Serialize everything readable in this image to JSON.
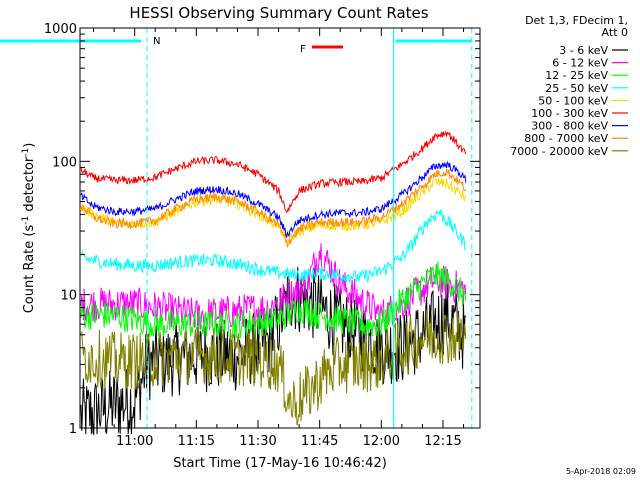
{
  "chart_data": {
    "type": "line",
    "title": "HESSI Observing Summary Count Rates",
    "xlabel": "Start Time (17-May-16 10:46:42)",
    "ylabel_main": "Count Rate (s",
    "ylabel_sup1": "-1",
    "ylabel_mid": " detector",
    "ylabel_sup2": "-1",
    "ylabel_end": ")",
    "y_scale": "log",
    "xlim": [
      "10:46:42",
      "12:24"
    ],
    "ylim": [
      1,
      1000
    ],
    "x_ticks": [
      "11:00",
      "11:15",
      "11:30",
      "11:45",
      "12:00",
      "12:15"
    ],
    "y_ticks": [
      "1",
      "10",
      "100",
      "1000"
    ],
    "legend_header": [
      "Det 1,3, FDecim 1,",
      "Att 0"
    ],
    "legend_position": "right",
    "annotations": {
      "night_label": "N",
      "flare_label": "F"
    },
    "timestamp": "5-Apr-2018 02:09",
    "series": [
      {
        "name": "3 - 6 keV",
        "color": "#000000",
        "time": [
          "10:46",
          "10:50",
          "10:55",
          "11:00",
          "11:03",
          "11:08",
          "11:15",
          "11:25",
          "11:33",
          "11:38",
          "11:42",
          "11:45",
          "11:50",
          "11:55",
          "12:00",
          "12:05",
          "12:10",
          "12:13",
          "12:16",
          "12:20",
          "12:22"
        ],
        "values": [
          1.2,
          1.3,
          1.5,
          1.6,
          3.0,
          3.2,
          3.5,
          3.5,
          4.5,
          10,
          9,
          8,
          6,
          5,
          4,
          4,
          5,
          6,
          7,
          5,
          3.5
        ]
      },
      {
        "name": "6 - 12 keV",
        "color": "#ff00ff",
        "time": [
          "10:46",
          "10:55",
          "11:00",
          "11:05",
          "11:15",
          "11:25",
          "11:33",
          "11:38",
          "11:42",
          "11:45",
          "11:50",
          "11:55",
          "12:00",
          "12:05",
          "12:10",
          "12:13",
          "12:16",
          "12:20",
          "12:22"
        ],
        "values": [
          8.5,
          8.5,
          8.5,
          8,
          7,
          7.5,
          8,
          10,
          12,
          22,
          12,
          9,
          7,
          8.5,
          11,
          13,
          12,
          11,
          9
        ]
      },
      {
        "name": "12 - 25 keV",
        "color": "#00ff00",
        "time": [
          "10:46",
          "10:55",
          "11:00",
          "11:05",
          "11:15",
          "11:25",
          "11:35",
          "11:40",
          "11:45",
          "11:50",
          "11:55",
          "12:00",
          "12:05",
          "12:10",
          "12:13",
          "12:16",
          "12:20",
          "12:22"
        ],
        "values": [
          7,
          7,
          6.5,
          6,
          6,
          6,
          6.5,
          8,
          7,
          6.5,
          6,
          6,
          9,
          12,
          14,
          13,
          10,
          9
        ]
      },
      {
        "name": "25 - 50 keV",
        "color": "#00ffff",
        "time": [
          "10:46",
          "10:55",
          "11:00",
          "11:05",
          "11:10",
          "11:15",
          "11:20",
          "11:25",
          "11:30",
          "11:35",
          "11:40",
          "11:45",
          "11:50",
          "11:55",
          "12:00",
          "12:05",
          "12:08",
          "12:11",
          "12:14",
          "12:17",
          "12:20",
          "12:22"
        ],
        "values": [
          19,
          17,
          16.5,
          16.5,
          17.5,
          18,
          18,
          17,
          15.5,
          14.5,
          14,
          14.5,
          14,
          13.5,
          15,
          19,
          25,
          35,
          42,
          33,
          25,
          21
        ]
      },
      {
        "name": "50 - 100 keV",
        "color": "#ffd700",
        "time": [
          "10:46",
          "10:50",
          "10:55",
          "11:00",
          "11:05",
          "11:10",
          "11:15",
          "11:20",
          "11:25",
          "11:30",
          "11:35",
          "11:37",
          "11:40",
          "11:45",
          "11:50",
          "11:55",
          "12:00",
          "12:05",
          "12:10",
          "12:13",
          "12:16",
          "12:19",
          "12:22"
        ],
        "values": [
          47,
          40,
          35,
          34,
          35,
          42,
          50,
          52,
          48,
          40,
          33,
          25,
          30,
          33,
          33,
          33,
          35,
          42,
          58,
          70,
          68,
          58,
          48
        ]
      },
      {
        "name": "100 - 300 keV",
        "color": "#ff0000",
        "time": [
          "10:46",
          "10:50",
          "10:55",
          "11:00",
          "11:05",
          "11:10",
          "11:15",
          "11:20",
          "11:25",
          "11:30",
          "11:35",
          "11:37",
          "11:40",
          "11:45",
          "11:50",
          "11:55",
          "12:00",
          "12:05",
          "12:10",
          "12:13",
          "12:16",
          "12:19",
          "12:22"
        ],
        "values": [
          90,
          75,
          72,
          72,
          76,
          88,
          100,
          102,
          95,
          80,
          60,
          42,
          60,
          68,
          70,
          70,
          75,
          95,
          125,
          155,
          165,
          130,
          100
        ]
      },
      {
        "name": "300 - 800 keV",
        "color": "#0000ff",
        "time": [
          "10:46",
          "10:50",
          "10:55",
          "11:00",
          "11:05",
          "11:10",
          "11:15",
          "11:20",
          "11:25",
          "11:30",
          "11:35",
          "11:37",
          "11:40",
          "11:45",
          "11:50",
          "11:55",
          "12:00",
          "12:05",
          "12:10",
          "12:13",
          "12:16",
          "12:19",
          "12:22"
        ],
        "values": [
          58,
          46,
          42,
          42,
          44,
          52,
          60,
          62,
          57,
          48,
          38,
          28,
          36,
          40,
          41,
          41,
          44,
          56,
          76,
          92,
          95,
          82,
          65
        ]
      },
      {
        "name": "800 - 7000 keV",
        "color": "#ff8c00",
        "time": [
          "10:46",
          "10:50",
          "10:55",
          "11:00",
          "11:05",
          "11:10",
          "11:15",
          "11:20",
          "11:25",
          "11:30",
          "11:35",
          "11:37",
          "11:40",
          "11:45",
          "11:50",
          "11:55",
          "12:00",
          "12:05",
          "12:10",
          "12:13",
          "12:16",
          "12:19",
          "12:22"
        ],
        "values": [
          50,
          38,
          34,
          34,
          36,
          44,
          52,
          54,
          50,
          42,
          33,
          24,
          31,
          35,
          35,
          35,
          38,
          48,
          65,
          80,
          84,
          70,
          55
        ]
      },
      {
        "name": "7000 - 20000 keV",
        "color": "#808000",
        "time": [
          "10:46",
          "10:55",
          "11:00",
          "11:05",
          "11:10",
          "11:15",
          "11:20",
          "11:25",
          "11:30",
          "11:35",
          "11:38",
          "11:42",
          "11:46",
          "11:50",
          "11:55",
          "12:00",
          "12:05",
          "12:10",
          "12:15",
          "12:20",
          "12:22"
        ],
        "values": [
          3.5,
          3.2,
          3.2,
          3.3,
          3.4,
          3.5,
          3.5,
          3.4,
          3.3,
          3,
          1.5,
          1.8,
          2.5,
          3,
          3,
          3.2,
          4,
          4.8,
          5,
          4.8,
          4.5
        ]
      }
    ]
  }
}
